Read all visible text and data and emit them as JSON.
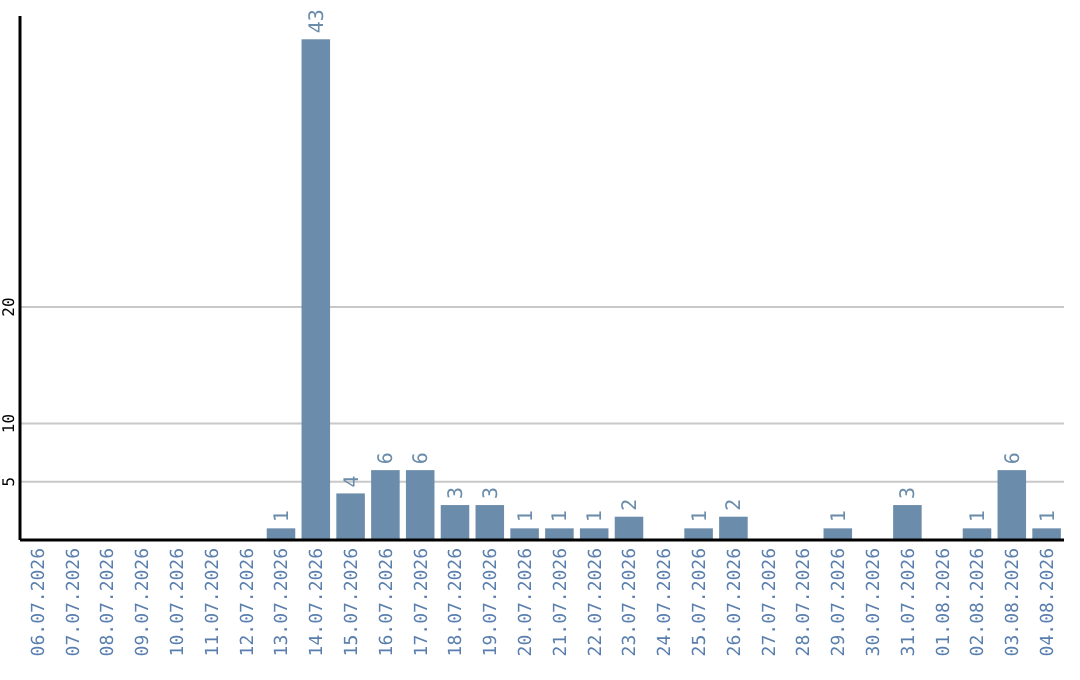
{
  "chart_data": {
    "type": "bar",
    "categories": [
      "06.07.2026",
      "07.07.2026",
      "08.07.2026",
      "09.07.2026",
      "10.07.2026",
      "11.07.2026",
      "12.07.2026",
      "13.07.2026",
      "14.07.2026",
      "15.07.2026",
      "16.07.2026",
      "17.07.2026",
      "18.07.2026",
      "19.07.2026",
      "20.07.2026",
      "21.07.2026",
      "22.07.2026",
      "23.07.2026",
      "24.07.2026",
      "25.07.2026",
      "26.07.2026",
      "27.07.2026",
      "28.07.2026",
      "29.07.2026",
      "30.07.2026",
      "31.07.2026",
      "01.08.2026",
      "02.08.2026",
      "03.08.2026",
      "04.08.2026"
    ],
    "values": [
      0,
      0,
      0,
      0,
      0,
      0,
      0,
      1,
      43,
      4,
      6,
      6,
      3,
      3,
      1,
      1,
      1,
      2,
      0,
      1,
      2,
      0,
      0,
      1,
      0,
      3,
      0,
      1,
      6,
      1
    ],
    "value_labels": [
      null,
      null,
      null,
      null,
      null,
      null,
      null,
      "1",
      "43",
      "4",
      "6",
      "6",
      "3",
      "3",
      "1",
      "1",
      "1",
      "2",
      null,
      "1",
      "2",
      null,
      null,
      "1",
      null,
      "3",
      null,
      "1",
      "6",
      "1"
    ],
    "color": "#6b8cab",
    "ylim": [
      0,
      45
    ],
    "yticks": [
      5,
      10,
      20
    ],
    "grid": "y"
  }
}
